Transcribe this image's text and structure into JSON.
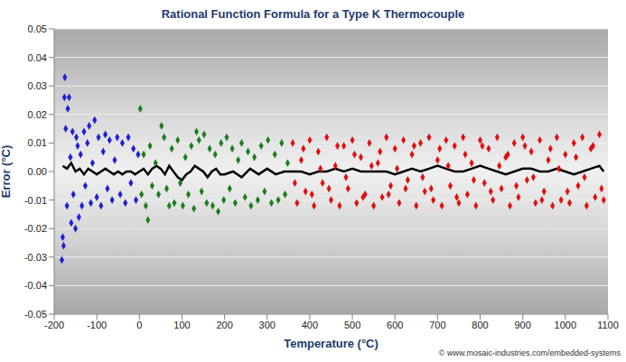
{
  "chart_data": {
    "type": "scatter",
    "title": "Rational Function Formula for a Type K Thermocouple",
    "x_label": "Temperature (°C)",
    "y_label": "Error (°C)",
    "annotations": [
      "© www.mosaic-industries.com/embedded-systems"
    ],
    "xlim": [
      -200,
      1100
    ],
    "xticks": [
      -200,
      -100,
      0,
      100,
      200,
      300,
      400,
      500,
      600,
      700,
      800,
      900,
      1000,
      1100
    ],
    "ylim": [
      -0.05,
      0.05
    ],
    "yticks": [
      0.05,
      0.04,
      0.03,
      0.02,
      0.01,
      {
        "value": 0,
        "label": "0.00"
      },
      -0.01,
      -0.02,
      -0.03,
      -0.04,
      -0.05
    ],
    "grid": true,
    "series": [
      {
        "color": "#1f1fd6",
        "marker": "diamond",
        "x": [
          -182,
          -180,
          -178,
          -176,
          -175,
          -173,
          -170,
          -168,
          -165,
          -162,
          -160,
          -157,
          -155,
          -150,
          -148,
          -145,
          -142,
          -138,
          -135,
          -130,
          -127,
          -122,
          -118,
          -114,
          -110,
          -105,
          -100,
          -96,
          -90,
          -85,
          -80,
          -75,
          -70,
          -64,
          -58,
          -52,
          -45,
          -40,
          -33,
          -26,
          -20,
          -14,
          -8,
          -3
        ],
        "values": [
          -0.031,
          -0.023,
          -0.026,
          0.026,
          0.033,
          0.015,
          -0.012,
          0.022,
          0.026,
          0.005,
          -0.018,
          0.014,
          -0.008,
          -0.02,
          0.012,
          0.009,
          -0.016,
          0.006,
          -0.012,
          0.014,
          -0.005,
          0.01,
          0.016,
          -0.011,
          0.003,
          0.018,
          -0.009,
          0.012,
          -0.012,
          0.007,
          0.013,
          -0.006,
          0.011,
          -0.01,
          0.004,
          0.012,
          -0.008,
          0.01,
          -0.011,
          0.012,
          -0.004,
          0.008,
          -0.01,
          0.006
        ]
      },
      {
        "color": "#1e7d1e",
        "marker": "diamond",
        "x": [
          2,
          5,
          10,
          15,
          20,
          25,
          30,
          38,
          45,
          52,
          58,
          64,
          70,
          76,
          82,
          90,
          96,
          102,
          108,
          115,
          122,
          128,
          134,
          140,
          146,
          152,
          158,
          165,
          172,
          178,
          185,
          192,
          198,
          205,
          212,
          218,
          225,
          232,
          240,
          248,
          255,
          262,
          270,
          278,
          286,
          294,
          302,
          310,
          318,
          326,
          334,
          342,
          348
        ],
        "values": [
          0.022,
          -0.008,
          0.006,
          -0.012,
          -0.017,
          0.009,
          -0.005,
          0.003,
          -0.008,
          0.016,
          0.012,
          -0.006,
          -0.012,
          0.008,
          -0.011,
          0.011,
          -0.004,
          -0.012,
          0.005,
          -0.008,
          0.009,
          -0.013,
          0.014,
          0.011,
          -0.007,
          0.013,
          -0.011,
          0.008,
          -0.012,
          0.006,
          -0.014,
          0.01,
          -0.01,
          0.012,
          -0.006,
          0.008,
          -0.011,
          0.004,
          0.01,
          -0.009,
          0.007,
          -0.012,
          0.005,
          -0.01,
          0.009,
          -0.007,
          0.011,
          -0.011,
          0.006,
          -0.01,
          0.01,
          -0.008,
          0.003
        ]
      },
      {
        "color": "#e01010",
        "marker": "diamond",
        "x": [
          360,
          370,
          380,
          390,
          400,
          410,
          420,
          430,
          440,
          450,
          460,
          470,
          480,
          490,
          500,
          510,
          520,
          530,
          540,
          550,
          560,
          570,
          580,
          590,
          600,
          610,
          620,
          630,
          640,
          650,
          660,
          670,
          680,
          690,
          700,
          710,
          720,
          730,
          740,
          750,
          760,
          770,
          780,
          790,
          800,
          810,
          820,
          830,
          840,
          850,
          860,
          870,
          880,
          890,
          900,
          910,
          920,
          930,
          940,
          950,
          960,
          970,
          980,
          990,
          1000,
          1010,
          1020,
          1030,
          1040,
          1050,
          1060,
          1070,
          1080,
          1090,
          365,
          385,
          405,
          425,
          445,
          465,
          485,
          505,
          525,
          545,
          565,
          585,
          605,
          625,
          645,
          665,
          685,
          705,
          725,
          745,
          765,
          785,
          805,
          825,
          845,
          865,
          885,
          905,
          925,
          945,
          965,
          985,
          1005,
          1025,
          1045,
          1065,
          1085
        ],
        "values": [
          0.01,
          -0.011,
          0.004,
          -0.007,
          0.011,
          -0.012,
          0.007,
          -0.004,
          0.012,
          -0.01,
          0.002,
          -0.012,
          0.009,
          -0.006,
          0.011,
          -0.011,
          0.005,
          -0.008,
          0.01,
          -0.012,
          0.003,
          -0.009,
          0.012,
          -0.005,
          0.008,
          -0.011,
          0.011,
          -0.003,
          0.006,
          -0.012,
          0.01,
          -0.007,
          0.012,
          -0.01,
          0.004,
          -0.012,
          0.011,
          -0.005,
          0.009,
          -0.011,
          0.012,
          -0.008,
          0.003,
          -0.012,
          0.011,
          -0.004,
          0.008,
          -0.01,
          0.012,
          -0.006,
          0.005,
          -0.012,
          0.01,
          -0.009,
          0.012,
          -0.003,
          0.007,
          -0.011,
          0.011,
          -0.007,
          0.004,
          -0.012,
          0.012,
          -0.01,
          0.006,
          -0.011,
          0.01,
          -0.005,
          0.012,
          -0.012,
          0.008,
          -0.009,
          0.013,
          -0.01,
          -0.004,
          0.008,
          -0.008,
          0.001,
          -0.006,
          0.009,
          -0.002,
          0.006,
          -0.009,
          0.002,
          0.007,
          -0.008,
          0.001,
          -0.006,
          0.009,
          -0.002,
          -0.006,
          0.008,
          0.002,
          -0.009,
          0.006,
          -0.003,
          0.009,
          -0.007,
          0.002,
          0.006,
          -0.005,
          0.009,
          -0.002,
          -0.01,
          0.008,
          0.001,
          -0.007,
          0.005,
          -0.002,
          0.009,
          -0.006
        ]
      },
      {
        "type": "line",
        "color": "#000000",
        "line_style": "solid",
        "x": [
          -180,
          -170,
          -160,
          -150,
          -140,
          -130,
          -120,
          -110,
          -100,
          -90,
          -80,
          -70,
          -60,
          -50,
          -40,
          -30,
          -20,
          -10,
          0,
          10,
          20,
          30,
          40,
          50,
          60,
          70,
          80,
          90,
          100,
          110,
          120,
          130,
          140,
          150,
          160,
          170,
          180,
          190,
          200,
          220,
          240,
          260,
          280,
          300,
          320,
          340,
          360,
          380,
          400,
          420,
          440,
          460,
          480,
          500,
          520,
          540,
          560,
          580,
          600,
          620,
          640,
          660,
          680,
          700,
          720,
          740,
          760,
          780,
          800,
          820,
          840,
          860,
          880,
          900,
          920,
          940,
          960,
          980,
          1000,
          1020,
          1040,
          1060,
          1080,
          1090
        ],
        "values": [
          0.002,
          0.001,
          0.003,
          0.0,
          0.001,
          -0.001,
          0.001,
          0.0,
          -0.001,
          0.0,
          0.001,
          0.0,
          -0.001,
          0.0,
          -0.001,
          0.0,
          0.0,
          -0.001,
          0.0,
          0.001,
          -0.001,
          0.001,
          0.002,
          0.001,
          -0.001,
          0.002,
          0.0,
          -0.002,
          -0.003,
          -0.001,
          0.0,
          0.002,
          0.001,
          0.0,
          -0.002,
          0.0,
          0.001,
          -0.001,
          -0.001,
          0.0,
          -0.002,
          0.001,
          -0.001,
          0.001,
          -0.001,
          0.0,
          0.0,
          0.0,
          -0.001,
          0.0,
          0.0,
          0.001,
          0.0,
          0.001,
          0.0,
          0.0,
          0.0,
          0.0,
          -0.001,
          0.0,
          0.001,
          0.0,
          0.001,
          0.002,
          0.001,
          0.0,
          0.0,
          0.001,
          0.002,
          0.001,
          0.0,
          -0.001,
          0.0,
          0.001,
          0.001,
          0.0,
          0.0,
          0.001,
          0.0,
          -0.001,
          0.0,
          0.001,
          0.002,
          0.0
        ]
      }
    ]
  }
}
